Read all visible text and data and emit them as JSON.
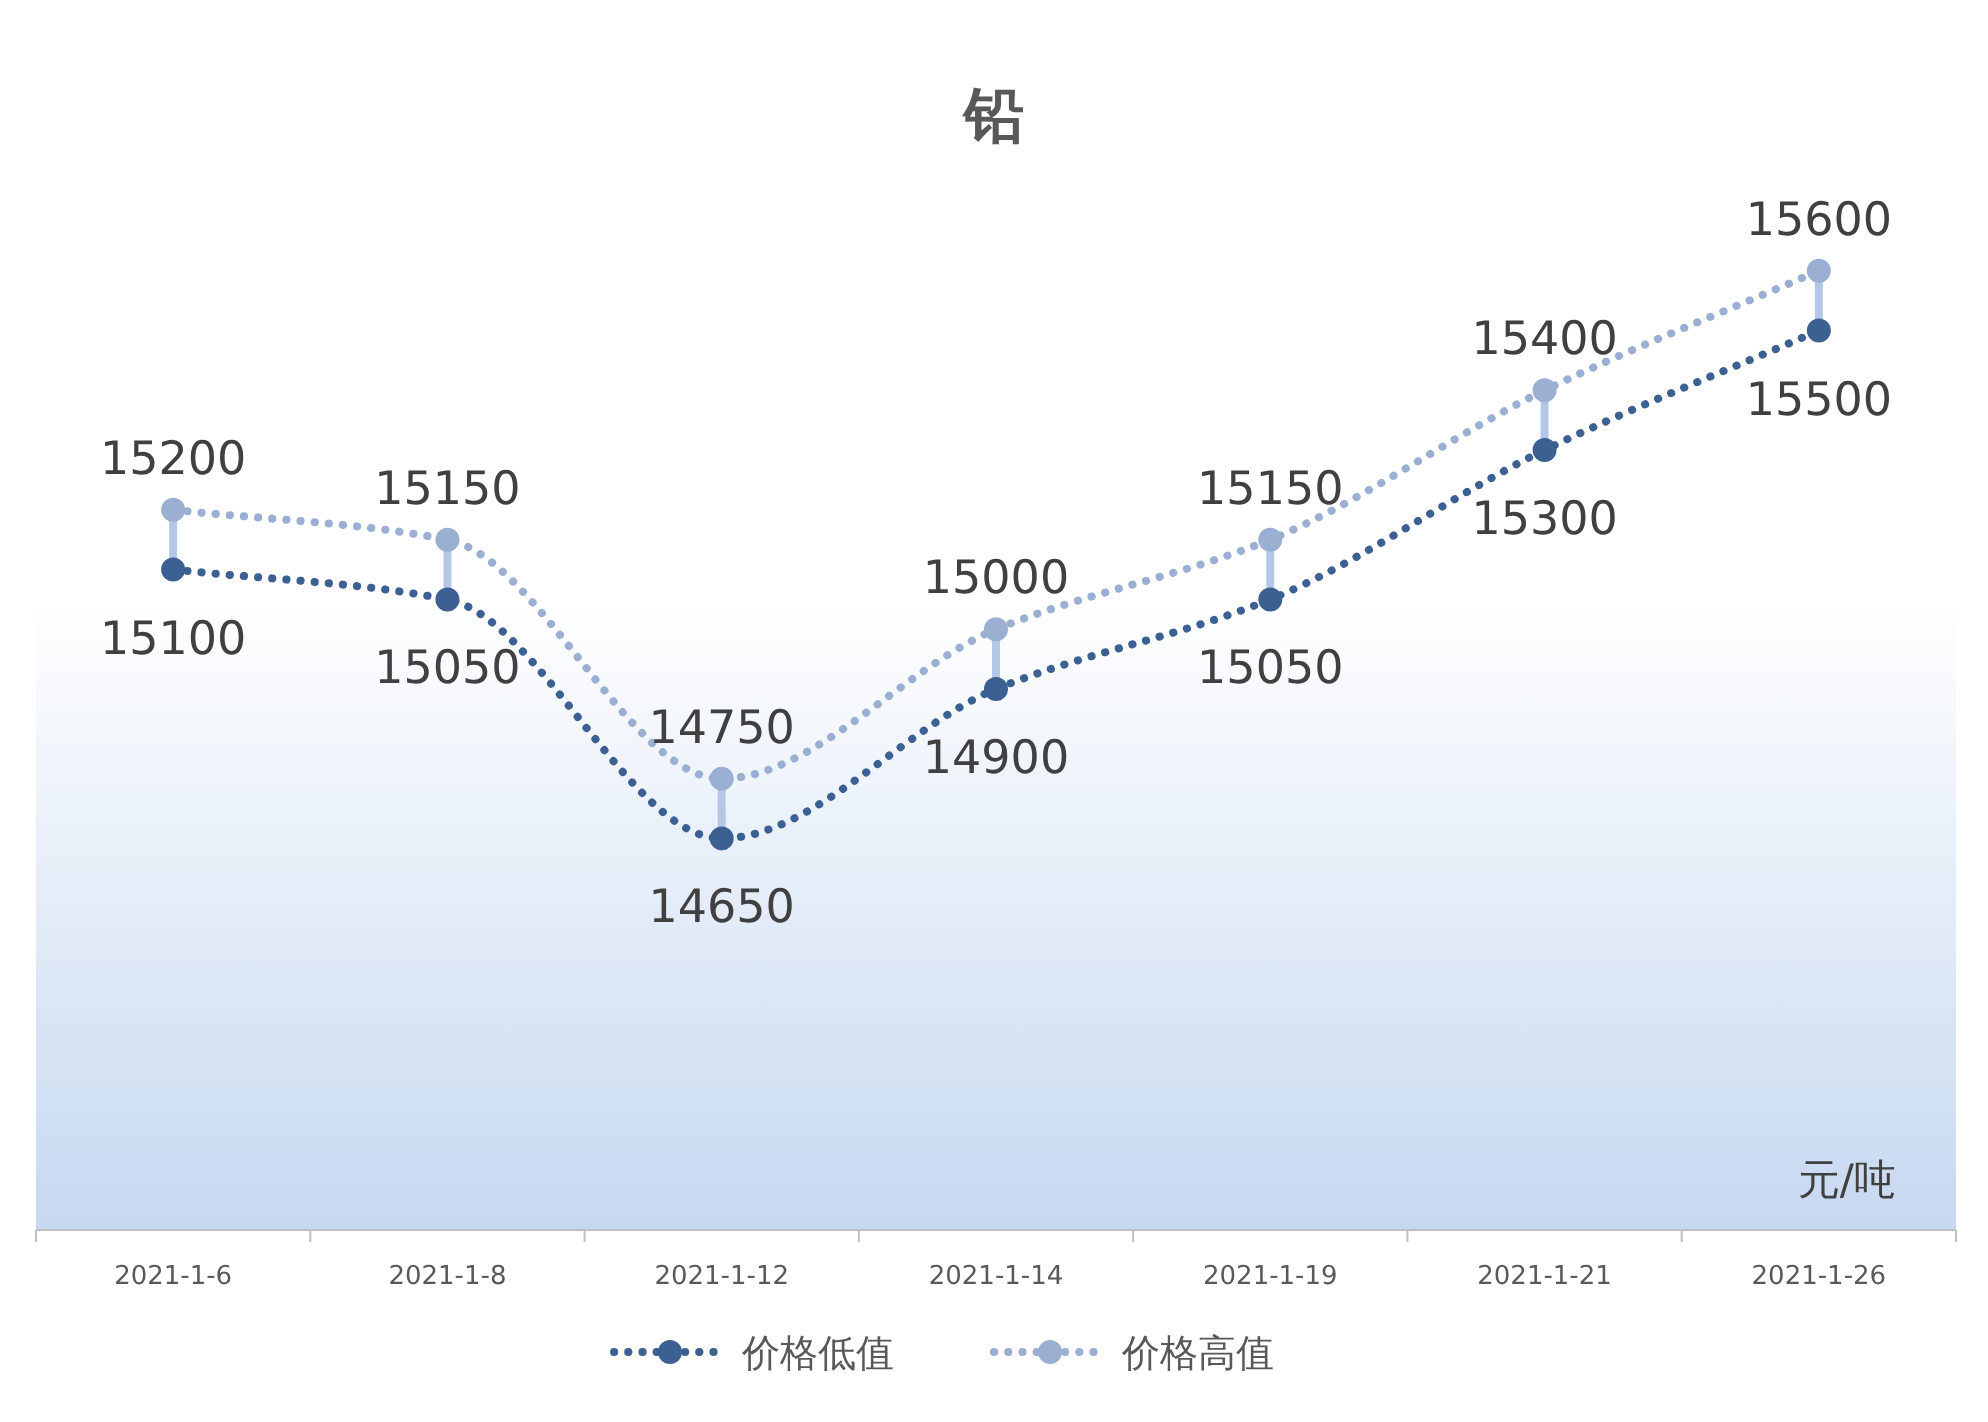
{
  "chart_data": {
    "type": "line",
    "title": "铅",
    "categories": [
      "2021-1-6",
      "2021-1-8",
      "2021-1-12",
      "2021-1-14",
      "2021-1-19",
      "2021-1-21",
      "2021-1-26"
    ],
    "series": [
      {
        "name": "价格低值",
        "color": "#3b6091",
        "values": [
          15100,
          15050,
          14650,
          14900,
          15050,
          15300,
          15500
        ]
      },
      {
        "name": "价格高值",
        "color": "#9aafd2",
        "values": [
          15200,
          15150,
          14750,
          15000,
          15150,
          15400,
          15600
        ]
      }
    ],
    "data_labels": true,
    "marker": "circle",
    "line_style": "dotted",
    "legend": "bottom",
    "grid": false,
    "annotations": [
      "元/吨"
    ]
  }
}
